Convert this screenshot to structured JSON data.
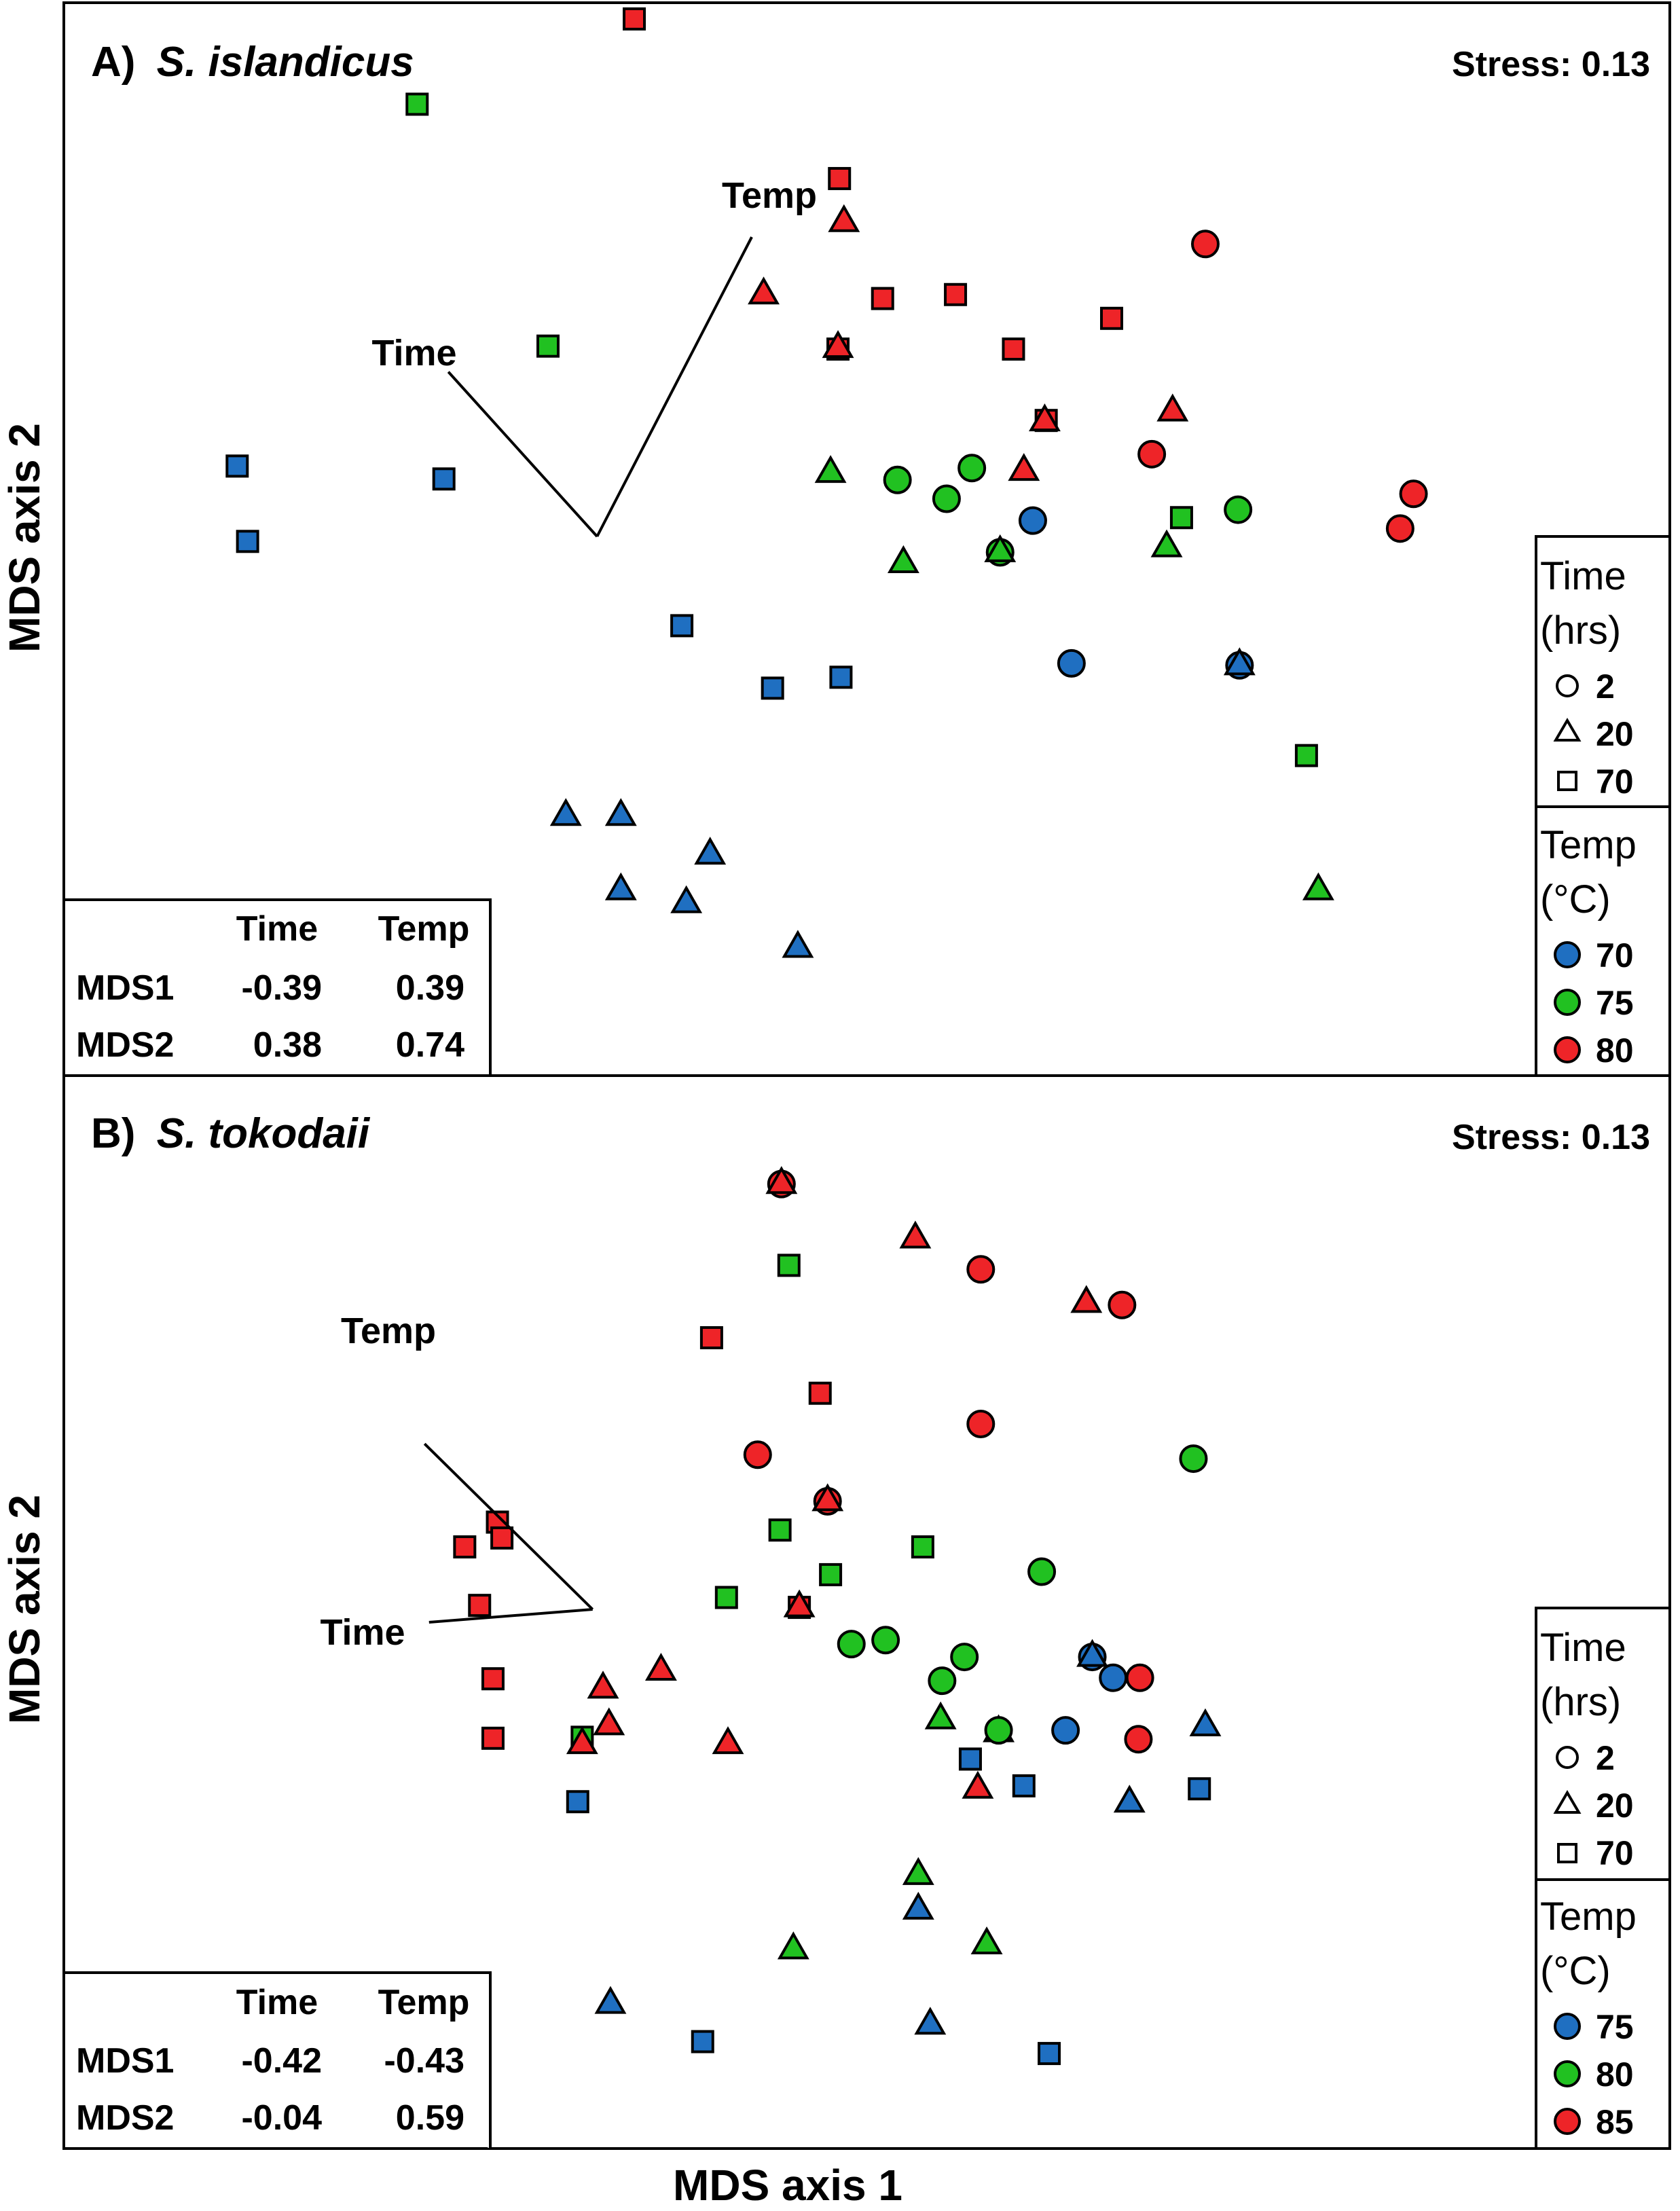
{
  "figure": {
    "x_axis_label": "MDS axis 1",
    "y_axis_label": "MDS axis 2"
  },
  "colors": {
    "blue": "#1f6fc1",
    "green": "#21c121",
    "red": "#ee2428",
    "stroke": "#000000"
  },
  "chart_data": [
    {
      "type": "scatter",
      "panel_label": "A)",
      "species": "S. islandicus",
      "title": "A) S. islandicus",
      "stress": "Stress: 0.13",
      "xlabel": "MDS axis 1",
      "ylabel": "MDS axis 2",
      "xlim": [
        0,
        1000
      ],
      "ylim": [
        0,
        1000
      ],
      "legend_time": {
        "title": "Time",
        "unit": "(hrs)",
        "items": [
          {
            "shape": "circle",
            "label": "2"
          },
          {
            "shape": "triangle",
            "label": "20"
          },
          {
            "shape": "square",
            "label": "70"
          }
        ]
      },
      "legend_temp": {
        "title": "Temp",
        "unit": "(°C)",
        "items": [
          {
            "color": "blue",
            "label": "70"
          },
          {
            "color": "green",
            "label": "75"
          },
          {
            "color": "red",
            "label": "80"
          }
        ]
      },
      "vector_table": {
        "header": [
          "",
          "Time",
          "Temp"
        ],
        "rows": [
          [
            "MDS1",
            "-0.39",
            "0.39"
          ],
          [
            "MDS2",
            "0.38",
            "0.74"
          ]
        ]
      },
      "vectors": {
        "origin": [
          333,
          500
        ],
        "time": {
          "label": "Time",
          "end": [
            233,
            666
          ]
        },
        "temp": {
          "label": "Temp",
          "end": [
            437,
            802
          ]
        }
      },
      "points": [
        {
          "x": 358,
          "y": 1022,
          "shape": "square",
          "color": "red"
        },
        {
          "x": 212,
          "y": 936,
          "shape": "square",
          "color": "green"
        },
        {
          "x": 496,
          "y": 861,
          "shape": "square",
          "color": "red"
        },
        {
          "x": 499,
          "y": 818,
          "shape": "triangle",
          "color": "red"
        },
        {
          "x": 445,
          "y": 745,
          "shape": "triangle",
          "color": "red"
        },
        {
          "x": 525,
          "y": 740,
          "shape": "square",
          "color": "red"
        },
        {
          "x": 574,
          "y": 744,
          "shape": "square",
          "color": "red"
        },
        {
          "x": 679,
          "y": 720,
          "shape": "square",
          "color": "red"
        },
        {
          "x": 613,
          "y": 689,
          "shape": "square",
          "color": "red"
        },
        {
          "x": 742,
          "y": 795,
          "shape": "circle",
          "color": "red"
        },
        {
          "x": 300,
          "y": 692,
          "shape": "square",
          "color": "green"
        },
        {
          "x": 495,
          "y": 689,
          "shape": "square",
          "color": "red"
        },
        {
          "x": 495,
          "y": 691,
          "shape": "triangle",
          "color": "red"
        },
        {
          "x": 635,
          "y": 617,
          "shape": "square",
          "color": "red"
        },
        {
          "x": 634,
          "y": 617,
          "shape": "triangle",
          "color": "red"
        },
        {
          "x": 720,
          "y": 627,
          "shape": "triangle",
          "color": "red"
        },
        {
          "x": 706,
          "y": 583,
          "shape": "circle",
          "color": "red"
        },
        {
          "x": 620,
          "y": 567,
          "shape": "triangle",
          "color": "red"
        },
        {
          "x": 490,
          "y": 565,
          "shape": "triangle",
          "color": "green"
        },
        {
          "x": 535,
          "y": 557,
          "shape": "circle",
          "color": "green"
        },
        {
          "x": 585,
          "y": 569,
          "shape": "circle",
          "color": "green"
        },
        {
          "x": 568,
          "y": 538,
          "shape": "circle",
          "color": "green"
        },
        {
          "x": 626,
          "y": 516,
          "shape": "circle",
          "color": "blue"
        },
        {
          "x": 604,
          "y": 484,
          "shape": "circle",
          "color": "green"
        },
        {
          "x": 604,
          "y": 485,
          "shape": "triangle",
          "color": "green"
        },
        {
          "x": 539,
          "y": 474,
          "shape": "triangle",
          "color": "green"
        },
        {
          "x": 726,
          "y": 519,
          "shape": "square",
          "color": "green"
        },
        {
          "x": 716,
          "y": 490,
          "shape": "triangle",
          "color": "green"
        },
        {
          "x": 764,
          "y": 527,
          "shape": "circle",
          "color": "green"
        },
        {
          "x": 882,
          "y": 543,
          "shape": "circle",
          "color": "red"
        },
        {
          "x": 873,
          "y": 508,
          "shape": "circle",
          "color": "red"
        },
        {
          "x": 91,
          "y": 571,
          "shape": "square",
          "color": "blue"
        },
        {
          "x": 230,
          "y": 558,
          "shape": "square",
          "color": "blue"
        },
        {
          "x": 98,
          "y": 495,
          "shape": "square",
          "color": "blue"
        },
        {
          "x": 390,
          "y": 410,
          "shape": "square",
          "color": "blue"
        },
        {
          "x": 451,
          "y": 347,
          "shape": "square",
          "color": "blue"
        },
        {
          "x": 497,
          "y": 358,
          "shape": "square",
          "color": "blue"
        },
        {
          "x": 652,
          "y": 372,
          "shape": "circle",
          "color": "blue"
        },
        {
          "x": 765,
          "y": 370,
          "shape": "circle",
          "color": "blue"
        },
        {
          "x": 765,
          "y": 371,
          "shape": "triangle",
          "color": "blue"
        },
        {
          "x": 810,
          "y": 279,
          "shape": "square",
          "color": "green"
        },
        {
          "x": 312,
          "y": 219,
          "shape": "triangle",
          "color": "blue"
        },
        {
          "x": 349,
          "y": 219,
          "shape": "triangle",
          "color": "blue"
        },
        {
          "x": 409,
          "y": 180,
          "shape": "triangle",
          "color": "blue"
        },
        {
          "x": 349,
          "y": 144,
          "shape": "triangle",
          "color": "blue"
        },
        {
          "x": 393,
          "y": 131,
          "shape": "triangle",
          "color": "blue"
        },
        {
          "x": 468,
          "y": 86,
          "shape": "triangle",
          "color": "blue"
        },
        {
          "x": 818,
          "y": 144,
          "shape": "triangle",
          "color": "green"
        }
      ]
    },
    {
      "type": "scatter",
      "panel_label": "B)",
      "species": "S. tokodaii",
      "title": "B) S. tokodaii",
      "stress": "Stress: 0.13",
      "xlabel": "MDS axis 1",
      "ylabel": "MDS axis 2",
      "xlim": [
        0,
        1000
      ],
      "ylim": [
        0,
        1000
      ],
      "legend_time": {
        "title": "Time",
        "unit": "(hrs)",
        "items": [
          {
            "shape": "circle",
            "label": "2"
          },
          {
            "shape": "triangle",
            "label": "20"
          },
          {
            "shape": "square",
            "label": "70"
          }
        ]
      },
      "legend_temp": {
        "title": "Temp",
        "unit": "(°C)",
        "items": [
          {
            "color": "blue",
            "label": "75"
          },
          {
            "color": "green",
            "label": "80"
          },
          {
            "color": "red",
            "label": "85"
          }
        ]
      },
      "vector_table": {
        "header": [
          "",
          "Time",
          "Temp"
        ],
        "rows": [
          [
            "MDS1",
            "-0.42",
            "-0.43"
          ],
          [
            "MDS2",
            "-0.04",
            "0.59"
          ]
        ]
      },
      "vectors": {
        "origin": [
          330,
          500
        ],
        "time": {
          "label": "Time",
          "end": [
            220,
            487
          ]
        },
        "temp": {
          "label": "Temp",
          "end": [
            217,
            667
          ]
        }
      },
      "points": [
        {
          "x": 457,
          "y": 929,
          "shape": "circle",
          "color": "red"
        },
        {
          "x": 457,
          "y": 930,
          "shape": "triangle",
          "color": "red"
        },
        {
          "x": 547,
          "y": 875,
          "shape": "triangle",
          "color": "red"
        },
        {
          "x": 462,
          "y": 847,
          "shape": "square",
          "color": "green"
        },
        {
          "x": 591,
          "y": 843,
          "shape": "circle",
          "color": "red"
        },
        {
          "x": 662,
          "y": 810,
          "shape": "triangle",
          "color": "red"
        },
        {
          "x": 686,
          "y": 807,
          "shape": "circle",
          "color": "red"
        },
        {
          "x": 410,
          "y": 774,
          "shape": "square",
          "color": "red"
        },
        {
          "x": 483,
          "y": 718,
          "shape": "square",
          "color": "red"
        },
        {
          "x": 591,
          "y": 687,
          "shape": "circle",
          "color": "red"
        },
        {
          "x": 441,
          "y": 656,
          "shape": "circle",
          "color": "red"
        },
        {
          "x": 734,
          "y": 652,
          "shape": "circle",
          "color": "green"
        },
        {
          "x": 488,
          "y": 609,
          "shape": "circle",
          "color": "red"
        },
        {
          "x": 488,
          "y": 610,
          "shape": "triangle",
          "color": "red"
        },
        {
          "x": 266,
          "y": 588,
          "shape": "square",
          "color": "red"
        },
        {
          "x": 269,
          "y": 572,
          "shape": "square",
          "color": "red"
        },
        {
          "x": 244,
          "y": 563,
          "shape": "square",
          "color": "red"
        },
        {
          "x": 456,
          "y": 580,
          "shape": "square",
          "color": "green"
        },
        {
          "x": 552,
          "y": 563,
          "shape": "square",
          "color": "green"
        },
        {
          "x": 632,
          "y": 538,
          "shape": "circle",
          "color": "green"
        },
        {
          "x": 490,
          "y": 535,
          "shape": "square",
          "color": "green"
        },
        {
          "x": 420,
          "y": 512,
          "shape": "square",
          "color": "green"
        },
        {
          "x": 469,
          "y": 502,
          "shape": "square",
          "color": "red"
        },
        {
          "x": 469,
          "y": 503,
          "shape": "triangle",
          "color": "red"
        },
        {
          "x": 254,
          "y": 504,
          "shape": "square",
          "color": "red"
        },
        {
          "x": 527,
          "y": 469,
          "shape": "circle",
          "color": "green"
        },
        {
          "x": 504,
          "y": 465,
          "shape": "circle",
          "color": "green"
        },
        {
          "x": 580,
          "y": 452,
          "shape": "circle",
          "color": "green"
        },
        {
          "x": 666,
          "y": 452,
          "shape": "circle",
          "color": "blue"
        },
        {
          "x": 666,
          "y": 453,
          "shape": "triangle",
          "color": "blue"
        },
        {
          "x": 565,
          "y": 428,
          "shape": "circle",
          "color": "green"
        },
        {
          "x": 680,
          "y": 431,
          "shape": "circle",
          "color": "blue"
        },
        {
          "x": 698,
          "y": 431,
          "shape": "circle",
          "color": "red"
        },
        {
          "x": 376,
          "y": 439,
          "shape": "triangle",
          "color": "red"
        },
        {
          "x": 263,
          "y": 430,
          "shape": "square",
          "color": "red"
        },
        {
          "x": 337,
          "y": 421,
          "shape": "triangle",
          "color": "red"
        },
        {
          "x": 564,
          "y": 390,
          "shape": "triangle",
          "color": "green"
        },
        {
          "x": 603,
          "y": 377,
          "shape": "triangle",
          "color": "green"
        },
        {
          "x": 603,
          "y": 378,
          "shape": "circle",
          "color": "green"
        },
        {
          "x": 648,
          "y": 378,
          "shape": "circle",
          "color": "blue"
        },
        {
          "x": 697,
          "y": 369,
          "shape": "circle",
          "color": "red"
        },
        {
          "x": 742,
          "y": 383,
          "shape": "triangle",
          "color": "blue"
        },
        {
          "x": 341,
          "y": 384,
          "shape": "triangle",
          "color": "red"
        },
        {
          "x": 323,
          "y": 371,
          "shape": "square",
          "color": "green"
        },
        {
          "x": 323,
          "y": 365,
          "shape": "triangle",
          "color": "red"
        },
        {
          "x": 263,
          "y": 370,
          "shape": "square",
          "color": "red"
        },
        {
          "x": 421,
          "y": 365,
          "shape": "triangle",
          "color": "red"
        },
        {
          "x": 584,
          "y": 349,
          "shape": "square",
          "color": "blue"
        },
        {
          "x": 589,
          "y": 320,
          "shape": "triangle",
          "color": "red"
        },
        {
          "x": 620,
          "y": 322,
          "shape": "square",
          "color": "blue"
        },
        {
          "x": 691,
          "y": 306,
          "shape": "triangle",
          "color": "blue"
        },
        {
          "x": 738,
          "y": 319,
          "shape": "square",
          "color": "blue"
        },
        {
          "x": 320,
          "y": 306,
          "shape": "square",
          "color": "blue"
        },
        {
          "x": 549,
          "y": 233,
          "shape": "triangle",
          "color": "green"
        },
        {
          "x": 549,
          "y": 198,
          "shape": "triangle",
          "color": "blue"
        },
        {
          "x": 595,
          "y": 163,
          "shape": "triangle",
          "color": "green"
        },
        {
          "x": 465,
          "y": 158,
          "shape": "triangle",
          "color": "green"
        },
        {
          "x": 342,
          "y": 103,
          "shape": "triangle",
          "color": "blue"
        },
        {
          "x": 557,
          "y": 82,
          "shape": "triangle",
          "color": "blue"
        },
        {
          "x": 404,
          "y": 64,
          "shape": "square",
          "color": "blue"
        },
        {
          "x": 637,
          "y": 52,
          "shape": "square",
          "color": "blue"
        }
      ]
    }
  ]
}
